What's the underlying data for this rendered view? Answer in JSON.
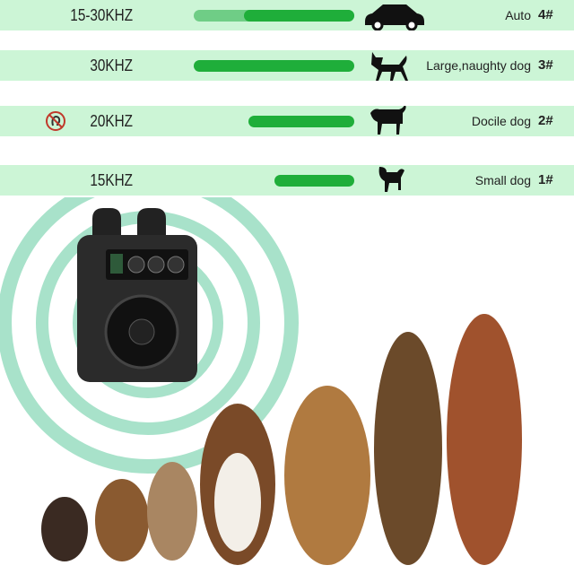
{
  "rows": [
    {
      "freq": "15-30KHZ",
      "label": "Auto",
      "num": "4#",
      "icon": "car-icon",
      "level": 1.0,
      "light_fraction": 0.31
    },
    {
      "freq": "30KHZ",
      "label": "Large,naughty dog",
      "num": "3#",
      "icon": "large-dog-icon",
      "level": 1.0
    },
    {
      "freq": "20KHZ",
      "label": "Docile dog",
      "num": "2#",
      "icon": "medium-dog-icon",
      "level": 0.66,
      "extra_icon": "no-hearing-icon"
    },
    {
      "freq": "15KHZ",
      "label": "Small dog",
      "num": "1#",
      "icon": "small-dog-icon",
      "level": 0.5
    }
  ],
  "colors": {
    "band": "#ccf5d6",
    "bar": "#1fae3a",
    "bar_light": "#6fcd86",
    "waves": "#3fbf8a"
  }
}
